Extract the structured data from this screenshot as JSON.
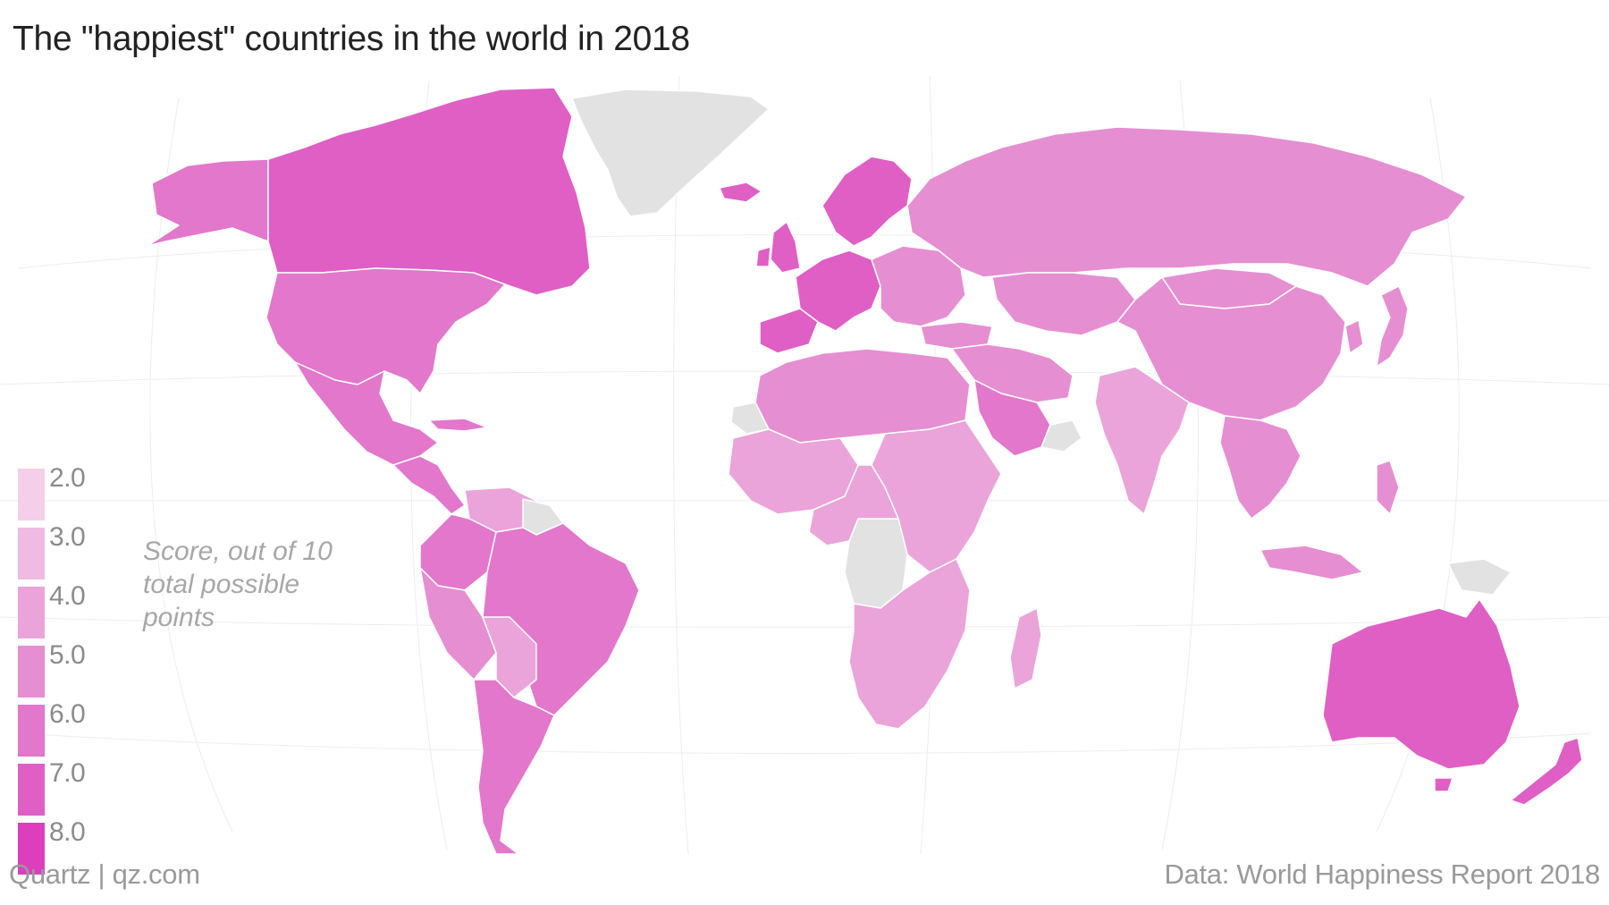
{
  "title": "The \"happiest\" countries in the world in 2018",
  "legend": {
    "label": "Score, out of 10 total possible points",
    "ticks": [
      "2.0",
      "3.0",
      "4.0",
      "5.0",
      "6.0",
      "7.0",
      "8.0"
    ],
    "colors": [
      "#f4cfe9",
      "#efbbe2",
      "#eaa4d9",
      "#e68ed2",
      "#e277cb",
      "#df5fc5",
      "#dc3ebd"
    ],
    "no_data_color": "#e2e2e2"
  },
  "footer": {
    "credit": "Quartz | qz.com",
    "source": "Data: World Happiness Report 2018"
  },
  "map_data": {
    "type": "choropleth",
    "metric": "score",
    "scale": [
      2,
      8
    ],
    "regions": [
      {
        "name": "Canada",
        "score": 7.3
      },
      {
        "name": "United States",
        "score": 6.9
      },
      {
        "name": "Mexico",
        "score": 6.5
      },
      {
        "name": "Brazil",
        "score": 6.4
      },
      {
        "name": "Argentina",
        "score": 6.4
      },
      {
        "name": "Colombia",
        "score": 6.3
      },
      {
        "name": "Peru",
        "score": 5.7
      },
      {
        "name": "Venezuela",
        "score": 4.8
      },
      {
        "name": "Nordics",
        "score": 7.6
      },
      {
        "name": "Western Europe",
        "score": 7.0
      },
      {
        "name": "Eastern Europe",
        "score": 5.8
      },
      {
        "name": "Russia",
        "score": 5.8
      },
      {
        "name": "China",
        "score": 5.2
      },
      {
        "name": "Mongolia",
        "score": 5.1
      },
      {
        "name": "Japan",
        "score": 5.9
      },
      {
        "name": "India",
        "score": 4.2
      },
      {
        "name": "Middle East",
        "score": 5.3
      },
      {
        "name": "Saudi Arabia",
        "score": 6.4
      },
      {
        "name": "North Africa",
        "score": 5.3
      },
      {
        "name": "Sub-Saharan Africa",
        "score": 4.3
      },
      {
        "name": "Southern Africa",
        "score": 4.4
      },
      {
        "name": "Southeast Asia",
        "score": 5.6
      },
      {
        "name": "Australia",
        "score": 7.3
      },
      {
        "name": "New Zealand",
        "score": 7.3
      },
      {
        "name": "Greenland",
        "score": null
      },
      {
        "name": "DR Congo",
        "score": null
      }
    ]
  }
}
